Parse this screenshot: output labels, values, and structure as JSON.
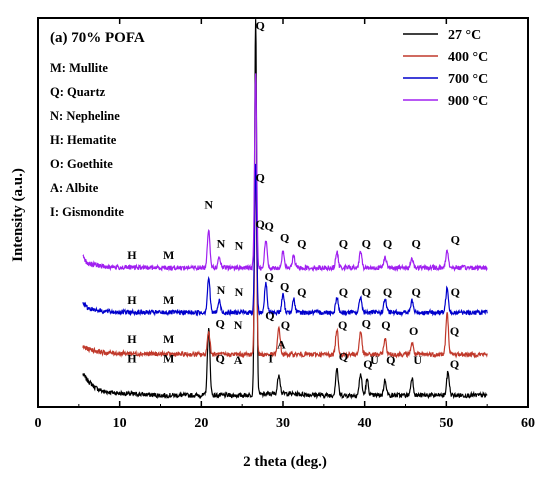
{
  "chart_data": {
    "type": "line",
    "panel_title": "(a) 70% POFA",
    "xlabel": "2 theta (deg.)",
    "ylabel": "Intensity (a.u.)",
    "xlim": [
      0,
      60
    ],
    "xticks": [
      "0",
      "10",
      "20",
      "30",
      "40",
      "50",
      "60"
    ],
    "grid": false,
    "legend_position": "top-right",
    "phase_key": [
      "M: Mullite",
      "Q: Quartz",
      "N: Nepheline",
      "H: Hematite",
      "O: Goethite",
      "A: Albite",
      "I: Gismondite"
    ],
    "series": [
      {
        "name": "27 °C",
        "color": "#000000",
        "offset": 0,
        "baseline_points": [
          [
            5.5,
            0.085
          ],
          [
            6,
            0.07
          ],
          [
            7,
            0.05
          ],
          [
            8,
            0.04
          ],
          [
            10,
            0.035
          ],
          [
            15,
            0.03
          ],
          [
            20,
            0.03
          ],
          [
            25,
            0.03
          ],
          [
            30,
            0.035
          ],
          [
            35,
            0.03
          ],
          [
            40,
            0.03
          ],
          [
            45,
            0.03
          ],
          [
            50,
            0.03
          ],
          [
            55,
            0.03
          ]
        ],
        "peaks": [
          [
            20.9,
            0.17
          ],
          [
            26.65,
            0.97
          ],
          [
            29.5,
            0.05
          ],
          [
            36.6,
            0.07
          ],
          [
            39.5,
            0.055
          ],
          [
            40.3,
            0.04
          ],
          [
            42.5,
            0.04
          ],
          [
            45.8,
            0.045
          ],
          [
            50.2,
            0.06
          ]
        ],
        "peak_labels": [
          {
            "x": 22.3,
            "y": 0.115,
            "text": "Q"
          },
          {
            "x": 24.5,
            "y": 0.11,
            "text": "A"
          },
          {
            "x": 27.2,
            "y": 0.46,
            "text": "Q"
          },
          {
            "x": 28.5,
            "y": 0.115,
            "text": "I"
          },
          {
            "x": 29.8,
            "y": 0.15,
            "text": "A"
          },
          {
            "x": 37.4,
            "y": 0.12,
            "text": "Q"
          },
          {
            "x": 40.4,
            "y": 0.1,
            "text": "Q"
          },
          {
            "x": 41.2,
            "y": 0.11,
            "text": "U"
          },
          {
            "x": 43.2,
            "y": 0.11,
            "text": "Q"
          },
          {
            "x": 46.5,
            "y": 0.11,
            "text": "U"
          },
          {
            "x": 51,
            "y": 0.1,
            "text": "Q"
          },
          {
            "x": 11.5,
            "y": 0.115,
            "text": "H"
          },
          {
            "x": 16,
            "y": 0.115,
            "text": "M"
          }
        ]
      },
      {
        "name": "400 °C",
        "color": "#c0392b",
        "offset": 0.13,
        "baseline_points": [
          [
            5.5,
            0.025
          ],
          [
            6,
            0.02
          ],
          [
            8,
            0.01
          ],
          [
            10,
            0.008
          ],
          [
            15,
            0.006
          ],
          [
            20,
            0.005
          ],
          [
            25,
            0.005
          ],
          [
            30,
            0.005
          ],
          [
            35,
            0.005
          ],
          [
            40,
            0.005
          ],
          [
            45,
            0.005
          ],
          [
            50,
            0.005
          ],
          [
            55,
            0.005
          ]
        ],
        "peaks": [
          [
            20.9,
            0.06
          ],
          [
            26.65,
            0.48
          ],
          [
            29.5,
            0.07
          ],
          [
            36.6,
            0.065
          ],
          [
            39.5,
            0.06
          ],
          [
            42.5,
            0.04
          ],
          [
            45.8,
            0.03
          ],
          [
            50.1,
            0.105
          ]
        ],
        "peak_labels": [
          {
            "x": 22.3,
            "y": 0.205,
            "text": "Q"
          },
          {
            "x": 24.5,
            "y": 0.2,
            "text": "N"
          },
          {
            "x": 28.4,
            "y": 0.225,
            "text": "Q"
          },
          {
            "x": 30.3,
            "y": 0.2,
            "text": "Q"
          },
          {
            "x": 37.3,
            "y": 0.2,
            "text": "Q"
          },
          {
            "x": 40.2,
            "y": 0.205,
            "text": "Q"
          },
          {
            "x": 42.6,
            "y": 0.2,
            "text": "Q"
          },
          {
            "x": 46,
            "y": 0.185,
            "text": "O"
          },
          {
            "x": 51,
            "y": 0.185,
            "text": "Q"
          },
          {
            "x": 11.5,
            "y": 0.165,
            "text": "H"
          },
          {
            "x": 16,
            "y": 0.165,
            "text": "M"
          }
        ]
      },
      {
        "name": "700 °C",
        "color": "#0000cc",
        "offset": 0.24,
        "baseline_points": [
          [
            5.5,
            0.03
          ],
          [
            6,
            0.015
          ],
          [
            8,
            0.006
          ],
          [
            10,
            0.004
          ],
          [
            15,
            0.003
          ],
          [
            20,
            0.003
          ],
          [
            25,
            0.003
          ],
          [
            30,
            0.003
          ],
          [
            35,
            0.003
          ],
          [
            40,
            0.003
          ],
          [
            45,
            0.003
          ],
          [
            50,
            0.003
          ],
          [
            55,
            0.003
          ]
        ],
        "peaks": [
          [
            20.9,
            0.09
          ],
          [
            22.2,
            0.03
          ],
          [
            26.65,
            0.38
          ],
          [
            27.9,
            0.075
          ],
          [
            30.0,
            0.045
          ],
          [
            31.3,
            0.035
          ],
          [
            36.6,
            0.04
          ],
          [
            39.5,
            0.04
          ],
          [
            42.5,
            0.035
          ],
          [
            45.8,
            0.03
          ],
          [
            50.1,
            0.065
          ]
        ],
        "peak_labels": [
          {
            "x": 22.4,
            "y": 0.29,
            "text": "N"
          },
          {
            "x": 24.6,
            "y": 0.285,
            "text": "N"
          },
          {
            "x": 28.3,
            "y": 0.325,
            "text": "Q"
          },
          {
            "x": 30.2,
            "y": 0.3,
            "text": "Q"
          },
          {
            "x": 32.3,
            "y": 0.285,
            "text": "Q"
          },
          {
            "x": 37.4,
            "y": 0.285,
            "text": "Q"
          },
          {
            "x": 40.2,
            "y": 0.285,
            "text": "Q"
          },
          {
            "x": 42.8,
            "y": 0.285,
            "text": "Q"
          },
          {
            "x": 46.3,
            "y": 0.285,
            "text": "Q"
          },
          {
            "x": 51.1,
            "y": 0.285,
            "text": "Q"
          },
          {
            "x": 11.5,
            "y": 0.265,
            "text": "H"
          },
          {
            "x": 16,
            "y": 0.265,
            "text": "M"
          }
        ]
      },
      {
        "name": "900 °C",
        "color": "#a020f0",
        "offset": 0.355,
        "baseline_points": [
          [
            5.5,
            0.03
          ],
          [
            6,
            0.015
          ],
          [
            8,
            0.006
          ],
          [
            10,
            0.004
          ],
          [
            15,
            0.003
          ],
          [
            20,
            0.003
          ],
          [
            25,
            0.003
          ],
          [
            30,
            0.003
          ],
          [
            35,
            0.003
          ],
          [
            40,
            0.003
          ],
          [
            45,
            0.003
          ],
          [
            50,
            0.003
          ],
          [
            55,
            0.003
          ]
        ],
        "peaks": [
          [
            20.9,
            0.1
          ],
          [
            22.2,
            0.025
          ],
          [
            26.65,
            0.505
          ],
          [
            27.9,
            0.07
          ],
          [
            30.0,
            0.04
          ],
          [
            31.3,
            0.03
          ],
          [
            36.6,
            0.04
          ],
          [
            39.5,
            0.04
          ],
          [
            42.5,
            0.03
          ],
          [
            45.8,
            0.025
          ],
          [
            50.1,
            0.045
          ]
        ],
        "peak_labels": [
          {
            "x": 20.9,
            "y": 0.51,
            "text": "N"
          },
          {
            "x": 22.4,
            "y": 0.41,
            "text": "N"
          },
          {
            "x": 24.6,
            "y": 0.405,
            "text": "N"
          },
          {
            "x": 27.2,
            "y": 0.97,
            "text": "Q"
          },
          {
            "x": 27.2,
            "y": 0.58,
            "text": "Q"
          },
          {
            "x": 28.3,
            "y": 0.455,
            "text": "Q"
          },
          {
            "x": 30.2,
            "y": 0.425,
            "text": "Q"
          },
          {
            "x": 32.3,
            "y": 0.41,
            "text": "Q"
          },
          {
            "x": 37.4,
            "y": 0.41,
            "text": "Q"
          },
          {
            "x": 40.2,
            "y": 0.41,
            "text": "Q"
          },
          {
            "x": 42.8,
            "y": 0.41,
            "text": "Q"
          },
          {
            "x": 46.3,
            "y": 0.41,
            "text": "Q"
          },
          {
            "x": 51.1,
            "y": 0.42,
            "text": "Q"
          },
          {
            "x": 11.5,
            "y": 0.38,
            "text": "H"
          },
          {
            "x": 16,
            "y": 0.38,
            "text": "M"
          }
        ]
      }
    ]
  }
}
